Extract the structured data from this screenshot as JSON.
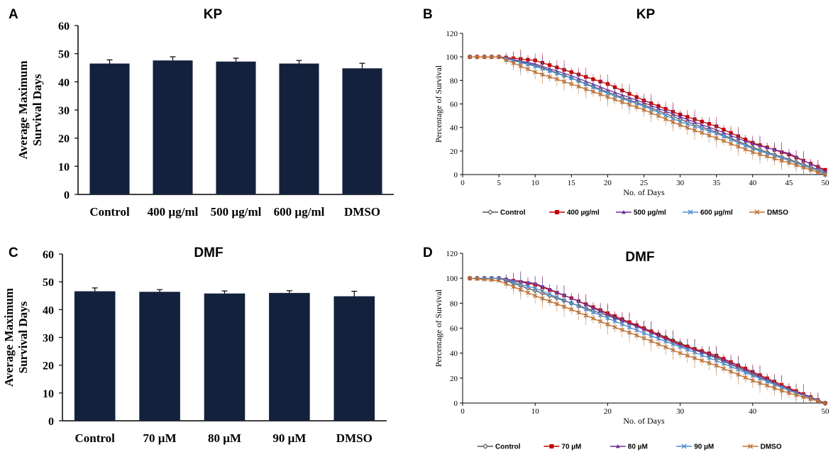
{
  "chart_data": [
    {
      "panel": "A",
      "type": "bar",
      "title": "KP",
      "ylabel": [
        "Average Maximum",
        "Survival Days"
      ],
      "xlabel": "",
      "categories": [
        "Control",
        "400 µg/ml",
        "500 µg/ml",
        "600 µg/ml",
        "DMSO"
      ],
      "values": [
        46.5,
        47.6,
        47.2,
        46.5,
        44.8
      ],
      "errors": [
        1.3,
        1.3,
        1.2,
        1.1,
        1.8
      ],
      "ylim": [
        0,
        60
      ],
      "yticks": [
        0,
        10,
        20,
        30,
        40,
        50,
        60
      ],
      "bar_color": "#14213d",
      "grid": false
    },
    {
      "panel": "B",
      "type": "line",
      "title": "KP",
      "xlabel": "No. of Days",
      "ylabel": "Percentage of Survival",
      "xlim": [
        0,
        50
      ],
      "ylim": [
        0,
        120
      ],
      "xticks": [
        0,
        5,
        10,
        15,
        20,
        25,
        30,
        35,
        40,
        45,
        50
      ],
      "yticks": [
        0,
        20,
        40,
        60,
        80,
        100,
        120
      ],
      "x": [
        1,
        5,
        10,
        15,
        20,
        25,
        30,
        35,
        40,
        45,
        50
      ],
      "legend_position": "bottom",
      "grid": false,
      "series": [
        {
          "name": "Control",
          "color": "#555555",
          "marker": "diamond",
          "values": [
            100,
            100,
            93,
            82,
            70,
            59,
            47,
            36,
            23,
            13,
            2
          ]
        },
        {
          "name": "400 µg/ml",
          "color": "#c00000",
          "marker": "square",
          "values": [
            100,
            100,
            97,
            87,
            77,
            63,
            51,
            41,
            27,
            17,
            4
          ]
        },
        {
          "name": "500 µg/ml",
          "color": "#7030a0",
          "marker": "triangle",
          "values": [
            100,
            100,
            94,
            84,
            72,
            61,
            49,
            38,
            26,
            18,
            3
          ]
        },
        {
          "name": "600 µg/ml",
          "color": "#4a90d0",
          "marker": "x",
          "values": [
            100,
            100,
            92,
            82,
            69,
            58,
            45,
            35,
            22,
            12,
            1
          ]
        },
        {
          "name": "DMSO",
          "color": "#c07030",
          "marker": "x",
          "values": [
            100,
            100,
            87,
            77,
            66,
            55,
            42,
            31,
            19,
            10,
            0
          ]
        }
      ]
    },
    {
      "panel": "C",
      "type": "bar",
      "title": "DMF",
      "ylabel": [
        "Average Maximum",
        "Survival Days"
      ],
      "xlabel": "",
      "categories": [
        "Control",
        "70 µM",
        "80 µM",
        "90 µM",
        "DMSO"
      ],
      "values": [
        46.6,
        46.4,
        45.8,
        46.0,
        44.8
      ],
      "errors": [
        1.2,
        0.8,
        0.9,
        0.8,
        1.8
      ],
      "ylim": [
        0,
        60
      ],
      "yticks": [
        0,
        10,
        20,
        30,
        40,
        50,
        60
      ],
      "bar_color": "#14213d",
      "grid": false
    },
    {
      "panel": "D",
      "type": "line",
      "title": "DMF",
      "xlabel": "No. of Days",
      "ylabel": "Percentage of Survival",
      "xlim": [
        0,
        50
      ],
      "ylim": [
        0,
        120
      ],
      "xticks": [
        0,
        10,
        20,
        30,
        40,
        50
      ],
      "yticks": [
        0,
        20,
        40,
        60,
        80,
        100,
        120
      ],
      "x": [
        1,
        5,
        10,
        15,
        20,
        25,
        30,
        35,
        40,
        45,
        50
      ],
      "legend_position": "bottom",
      "grid": false,
      "series": [
        {
          "name": "Control",
          "color": "#555555",
          "marker": "diamond",
          "values": [
            100,
            100,
            90,
            80,
            70,
            60,
            48,
            36,
            23,
            11,
            0
          ]
        },
        {
          "name": "70 µM",
          "color": "#c00000",
          "marker": "square",
          "values": [
            100,
            100,
            95,
            84,
            72,
            60,
            47,
            38,
            25,
            12,
            0
          ]
        },
        {
          "name": "80 µM",
          "color": "#7030a0",
          "marker": "triangle",
          "values": [
            100,
            100,
            96,
            84,
            71,
            59,
            46,
            37,
            24,
            11,
            0
          ]
        },
        {
          "name": "90 µM",
          "color": "#4a90d0",
          "marker": "x",
          "values": [
            100,
            100,
            92,
            80,
            68,
            56,
            45,
            34,
            22,
            10,
            0
          ]
        },
        {
          "name": "DMSO",
          "color": "#c07030",
          "marker": "x",
          "values": [
            100,
            98,
            86,
            75,
            63,
            52,
            40,
            30,
            18,
            8,
            0
          ]
        }
      ]
    }
  ]
}
